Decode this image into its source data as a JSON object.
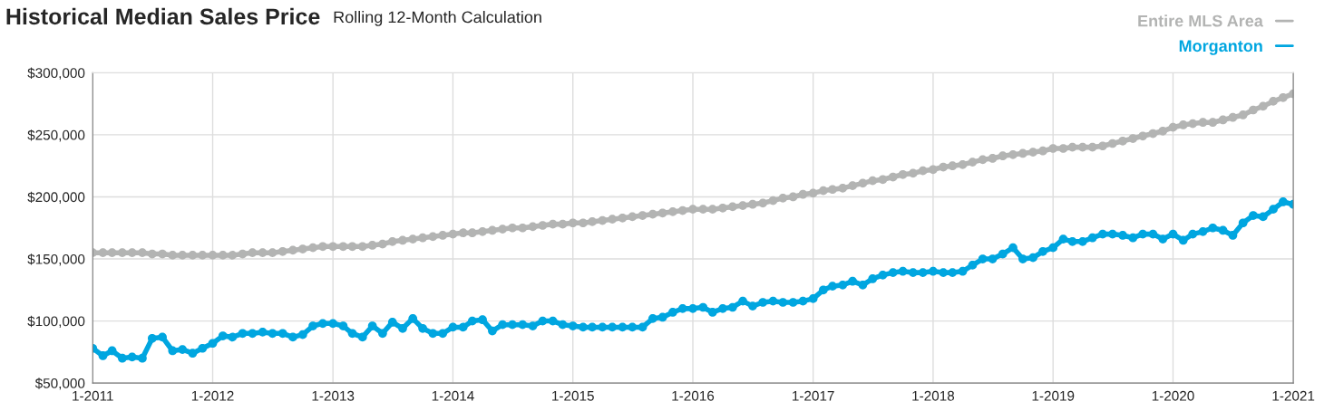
{
  "chart_data": {
    "type": "line",
    "title": "Historical Median Sales Price",
    "subtitle": "Rolling 12-Month Calculation",
    "x": [
      "2011-01",
      "2011-02",
      "2011-03",
      "2011-04",
      "2011-05",
      "2011-06",
      "2011-07",
      "2011-08",
      "2011-09",
      "2011-10",
      "2011-11",
      "2011-12",
      "2012-01",
      "2012-02",
      "2012-03",
      "2012-04",
      "2012-05",
      "2012-06",
      "2012-07",
      "2012-08",
      "2012-09",
      "2012-10",
      "2012-11",
      "2012-12",
      "2013-01",
      "2013-02",
      "2013-03",
      "2013-04",
      "2013-05",
      "2013-06",
      "2013-07",
      "2013-08",
      "2013-09",
      "2013-10",
      "2013-11",
      "2013-12",
      "2014-01",
      "2014-02",
      "2014-03",
      "2014-04",
      "2014-05",
      "2014-06",
      "2014-07",
      "2014-08",
      "2014-09",
      "2014-10",
      "2014-11",
      "2014-12",
      "2015-01",
      "2015-02",
      "2015-03",
      "2015-04",
      "2015-05",
      "2015-06",
      "2015-07",
      "2015-08",
      "2015-09",
      "2015-10",
      "2015-11",
      "2015-12",
      "2016-01",
      "2016-02",
      "2016-03",
      "2016-04",
      "2016-05",
      "2016-06",
      "2016-07",
      "2016-08",
      "2016-09",
      "2016-10",
      "2016-11",
      "2016-12",
      "2017-01",
      "2017-02",
      "2017-03",
      "2017-04",
      "2017-05",
      "2017-06",
      "2017-07",
      "2017-08",
      "2017-09",
      "2017-10",
      "2017-11",
      "2017-12",
      "2018-01",
      "2018-02",
      "2018-03",
      "2018-04",
      "2018-05",
      "2018-06",
      "2018-07",
      "2018-08",
      "2018-09",
      "2018-10",
      "2018-11",
      "2018-12",
      "2019-01",
      "2019-02",
      "2019-03",
      "2019-04",
      "2019-05",
      "2019-06",
      "2019-07",
      "2019-08",
      "2019-09",
      "2019-10",
      "2019-11",
      "2019-12",
      "2020-01",
      "2020-02",
      "2020-03",
      "2020-04",
      "2020-05",
      "2020-06",
      "2020-07",
      "2020-08",
      "2020-09",
      "2020-10",
      "2020-11",
      "2020-12",
      "2021-01"
    ],
    "series": [
      {
        "name": "Entire MLS Area",
        "color": "#b3b4b3",
        "values": [
          155000,
          155000,
          155000,
          155000,
          155000,
          155000,
          154000,
          154000,
          153000,
          153000,
          153000,
          153000,
          153000,
          153000,
          153000,
          154000,
          155000,
          155000,
          155000,
          156000,
          157000,
          158000,
          159000,
          160000,
          160000,
          160000,
          160000,
          160000,
          161000,
          162000,
          164000,
          165000,
          166000,
          167000,
          168000,
          169000,
          170000,
          171000,
          171000,
          172000,
          173000,
          174000,
          175000,
          175000,
          176000,
          177000,
          178000,
          178000,
          179000,
          179000,
          180000,
          181000,
          182000,
          183000,
          184000,
          185000,
          186000,
          187000,
          188000,
          189000,
          190000,
          190000,
          190000,
          191000,
          192000,
          193000,
          194000,
          195000,
          197000,
          199000,
          200000,
          202000,
          203000,
          205000,
          206000,
          207000,
          209000,
          211000,
          213000,
          214000,
          216000,
          218000,
          219000,
          221000,
          222000,
          224000,
          225000,
          226000,
          228000,
          230000,
          231000,
          233000,
          234000,
          235000,
          236000,
          237000,
          239000,
          239000,
          240000,
          240000,
          240000,
          241000,
          243000,
          245000,
          247000,
          249000,
          251000,
          253000,
          256000,
          258000,
          259000,
          260000,
          260000,
          262000,
          264000,
          266000,
          270000,
          273000,
          277000,
          280000,
          283000
        ]
      },
      {
        "name": "Morganton",
        "color": "#00a6e0",
        "values": [
          78000,
          72000,
          76000,
          70000,
          71000,
          70000,
          86000,
          87000,
          76000,
          77000,
          74000,
          78000,
          82000,
          88000,
          87000,
          90000,
          90000,
          91000,
          90000,
          90000,
          87000,
          89000,
          96000,
          98000,
          98000,
          96000,
          90000,
          87000,
          96000,
          90000,
          99000,
          94000,
          102000,
          94000,
          90000,
          90000,
          95000,
          95000,
          100000,
          101000,
          92000,
          97000,
          97000,
          97000,
          96000,
          100000,
          100000,
          97000,
          96000,
          95000,
          95000,
          95000,
          95000,
          95000,
          95000,
          95000,
          102000,
          103000,
          107000,
          110000,
          110000,
          111000,
          107000,
          110000,
          111000,
          116000,
          112000,
          115000,
          116000,
          115000,
          115000,
          116000,
          118000,
          125000,
          128000,
          129000,
          132000,
          129000,
          134000,
          137000,
          139000,
          140000,
          139000,
          139000,
          140000,
          139000,
          139000,
          140000,
          145000,
          150000,
          150000,
          154000,
          159000,
          150000,
          151000,
          156000,
          159000,
          166000,
          164000,
          164000,
          167000,
          170000,
          170000,
          169000,
          167000,
          170000,
          170000,
          166000,
          170000,
          165000,
          170000,
          172000,
          175000,
          173000,
          169000,
          179000,
          185000,
          184000,
          190000,
          196000,
          194000
        ]
      }
    ],
    "xlim": [
      "2011-01",
      "2021-01"
    ],
    "xticks": [
      {
        "value": "2011-01",
        "label": "1-2011"
      },
      {
        "value": "2012-01",
        "label": "1-2012"
      },
      {
        "value": "2013-01",
        "label": "1-2013"
      },
      {
        "value": "2014-01",
        "label": "1-2014"
      },
      {
        "value": "2015-01",
        "label": "1-2015"
      },
      {
        "value": "2016-01",
        "label": "1-2016"
      },
      {
        "value": "2017-01",
        "label": "1-2017"
      },
      {
        "value": "2018-01",
        "label": "1-2018"
      },
      {
        "value": "2019-01",
        "label": "1-2019"
      },
      {
        "value": "2020-01",
        "label": "1-2020"
      },
      {
        "value": "2021-01",
        "label": "1-2021"
      }
    ],
    "ylim": [
      50000,
      300000
    ],
    "yticks": [
      {
        "value": 50000,
        "label": "$50,000"
      },
      {
        "value": 100000,
        "label": "$100,000"
      },
      {
        "value": 150000,
        "label": "$150,000"
      },
      {
        "value": 200000,
        "label": "$200,000"
      },
      {
        "value": 250000,
        "label": "$250,000"
      },
      {
        "value": 300000,
        "label": "$300,000"
      }
    ],
    "grid": true,
    "legend": "top right",
    "marker": "circle",
    "line_style": "solid"
  }
}
